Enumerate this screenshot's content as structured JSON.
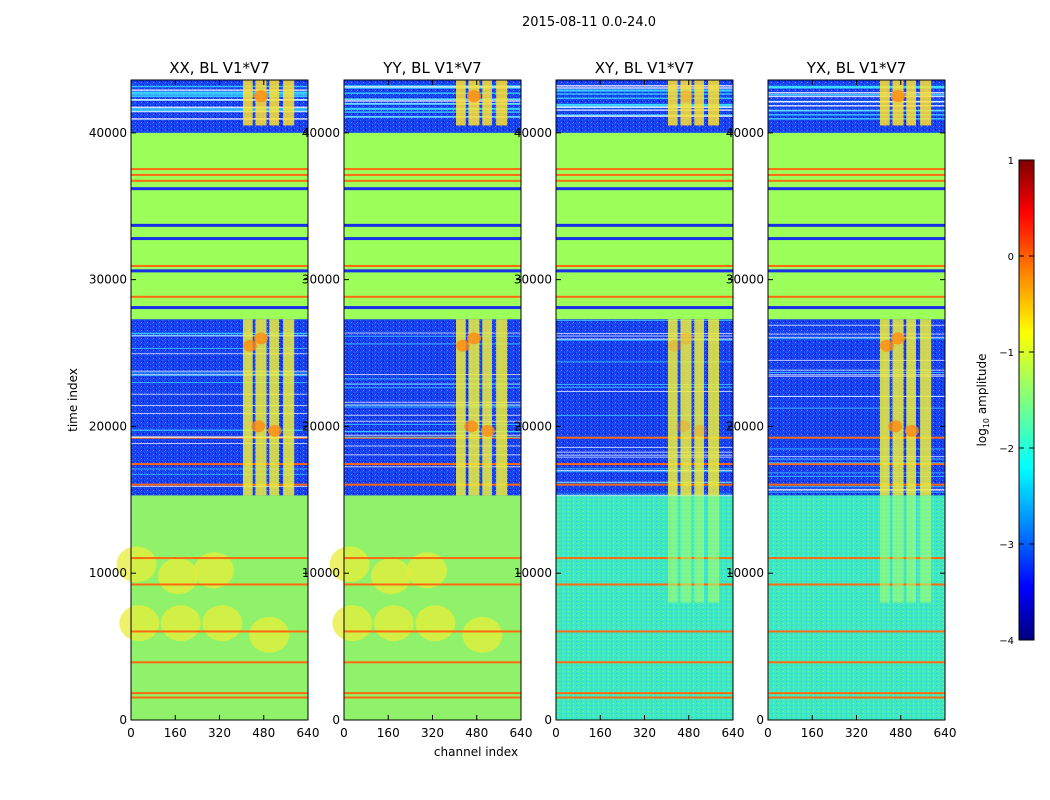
{
  "suptitle": "2015-08-11 0.0-24.0",
  "colors": {
    "background": "#ffffff",
    "cmap": [
      "#00007f",
      "#0000ff",
      "#007fff",
      "#00ffff",
      "#7fff7f",
      "#ffff00",
      "#ff7f00",
      "#ff0000",
      "#7f0000"
    ]
  },
  "chart_data": [
    {
      "type": "heatmap",
      "title": "XX, BL V1*V7",
      "xlabel": "",
      "ylabel": "time index",
      "xlim": [
        0,
        640
      ],
      "ylim": [
        0,
        43600
      ],
      "xticks": [
        "0",
        "160",
        "320",
        "480",
        "640"
      ],
      "yticks": [
        "0",
        "10000",
        "20000",
        "30000",
        "40000"
      ],
      "cross_hand": false
    },
    {
      "type": "heatmap",
      "title": "YY, BL V1*V7",
      "xlabel": "channel index",
      "ylabel": "",
      "xlim": [
        0,
        640
      ],
      "ylim": [
        0,
        43600
      ],
      "xticks": [
        "0",
        "160",
        "320",
        "480",
        "640"
      ],
      "yticks": [
        "0",
        "10000",
        "20000",
        "30000",
        "40000"
      ],
      "cross_hand": false
    },
    {
      "type": "heatmap",
      "title": "XY, BL V1*V7",
      "xlabel": "",
      "ylabel": "",
      "xlim": [
        0,
        640
      ],
      "ylim": [
        0,
        43600
      ],
      "xticks": [
        "0",
        "160",
        "320",
        "480",
        "640"
      ],
      "yticks": [
        "0",
        "10000",
        "20000",
        "30000",
        "40000"
      ],
      "cross_hand": true
    },
    {
      "type": "heatmap",
      "title": "YX, BL V1*V7",
      "xlabel": "",
      "ylabel": "",
      "xlim": [
        0,
        640
      ],
      "ylim": [
        0,
        43600
      ],
      "xticks": [
        "0",
        "160",
        "320",
        "480",
        "640"
      ],
      "yticks": [
        "0",
        "10000",
        "20000",
        "30000",
        "40000"
      ],
      "cross_hand": true
    }
  ],
  "colorbar": {
    "label": "log10 amplitude",
    "label_base": "log",
    "label_sub": "10",
    "label_rest": " amplitude",
    "range": [
      -4,
      1
    ],
    "ticks": [
      "1",
      "0",
      "−1",
      "−2",
      "−3",
      "−4"
    ]
  }
}
